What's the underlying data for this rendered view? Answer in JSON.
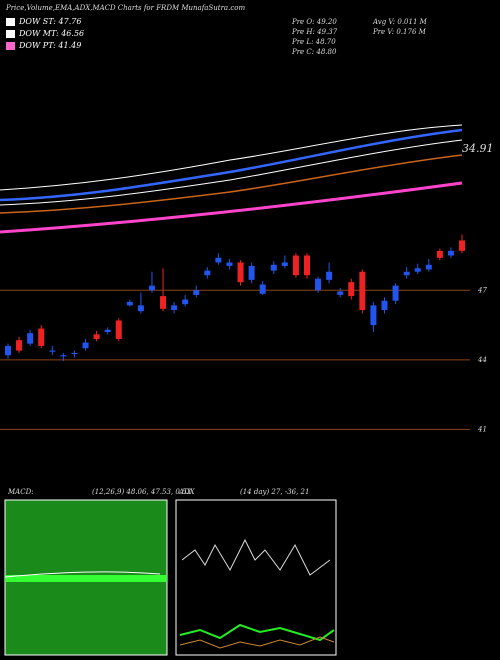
{
  "chart_data": {
    "type": "candlestick",
    "title": "Price,Volume,EMA,ADX,MACD Charts for FRDM MunafaSutra.com",
    "legend": [
      {
        "name": "DOW ST: 47.76",
        "color": "#ffffff"
      },
      {
        "name": "DOW MT: 46.56",
        "color": "#ffffff"
      },
      {
        "name": "DOW PT: 41.49",
        "color": "#ff66cc"
      }
    ],
    "info": [
      "Pre O: 49.20",
      "Pre H: 49.37",
      "Pre L: 48.70",
      "Pre C: 48.80",
      "Avg V: 0.011 M",
      "Pre V: 0.176 M"
    ],
    "ema_label": "34.91",
    "macd_label": "MACD:",
    "macd_values": "(12,26,9) 48.06, 47.53, 0.53",
    "adx_label": "ADX",
    "adx_values": "(14 day) 27, -36, 21",
    "up_color": "#2255ee",
    "down_color": "#ee2222",
    "grid_color": "#8b4513",
    "ylim": [
      39.25,
      49.6
    ],
    "yticks": [
      47,
      44,
      41
    ],
    "open": [
      44.2,
      44.85,
      44.7,
      45.35,
      44.35,
      44.15,
      44.25,
      44.5,
      45.1,
      45.2,
      45.7,
      46.35,
      46.1,
      47.0,
      46.75,
      46.15,
      46.4,
      46.8,
      47.65,
      48.2,
      48.05,
      48.2,
      47.45,
      46.85,
      47.85,
      48.05,
      48.5,
      48.5,
      47.0,
      47.45,
      46.8,
      47.35,
      47.8,
      45.5,
      46.15,
      46.55,
      47.65,
      47.8,
      47.9,
      48.7,
      48.5,
      49.15
    ],
    "close": [
      44.6,
      44.4,
      45.15,
      44.6,
      44.4,
      44.2,
      44.3,
      44.75,
      44.9,
      45.3,
      44.9,
      46.5,
      46.35,
      47.2,
      46.2,
      46.35,
      46.6,
      47.0,
      47.85,
      48.4,
      48.2,
      47.35,
      48.05,
      47.25,
      48.1,
      48.2,
      47.65,
      47.65,
      47.5,
      47.8,
      46.95,
      46.75,
      46.15,
      46.35,
      46.55,
      47.2,
      47.8,
      47.95,
      48.1,
      48.4,
      48.7,
      48.7
    ],
    "high": [
      44.7,
      45.0,
      45.3,
      45.5,
      44.6,
      44.3,
      44.4,
      44.9,
      45.25,
      45.4,
      45.8,
      46.6,
      46.9,
      47.8,
      47.95,
      46.5,
      46.8,
      47.2,
      48.0,
      48.6,
      48.35,
      48.3,
      48.2,
      47.4,
      48.25,
      48.5,
      48.6,
      48.6,
      47.6,
      48.2,
      47.1,
      47.5,
      47.9,
      46.5,
      46.7,
      47.3,
      48.0,
      48.15,
      48.35,
      48.8,
      48.85,
      49.4
    ],
    "low": [
      44.05,
      44.3,
      44.6,
      44.5,
      44.2,
      43.95,
      44.1,
      44.4,
      44.8,
      45.1,
      44.8,
      46.3,
      46.0,
      46.9,
      46.1,
      46.0,
      46.3,
      46.7,
      47.5,
      48.1,
      47.9,
      47.2,
      47.3,
      46.8,
      47.7,
      47.95,
      47.55,
      47.5,
      46.9,
      47.3,
      46.7,
      46.6,
      46.0,
      45.2,
      46.0,
      46.4,
      47.5,
      47.7,
      47.8,
      48.3,
      48.4,
      48.6
    ]
  }
}
